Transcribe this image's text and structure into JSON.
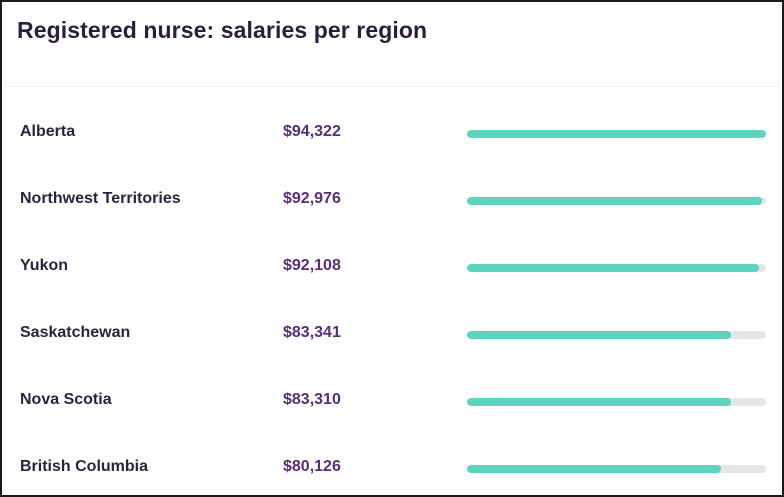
{
  "title": "Registered nurse: salaries per region",
  "colors": {
    "bar_fill": "#5dd4bd",
    "bar_track": "#e6e6e6",
    "salary_text": "#5a2d7a",
    "region_text": "#2b2340"
  },
  "chart_data": {
    "type": "bar",
    "title": "Registered nurse: salaries per region",
    "categories": [
      "Alberta",
      "Northwest Territories",
      "Yukon",
      "Saskatchewan",
      "Nova Scotia",
      "British Columbia"
    ],
    "values": [
      94322,
      92976,
      92108,
      83341,
      83310,
      80126
    ],
    "value_labels": [
      "$94,322",
      "$92,976",
      "$92,108",
      "$83,341",
      "$83,310",
      "$80,126"
    ],
    "xlabel": "",
    "ylabel": "",
    "xlim": [
      0,
      94322
    ],
    "orientation": "horizontal",
    "grid": false
  }
}
